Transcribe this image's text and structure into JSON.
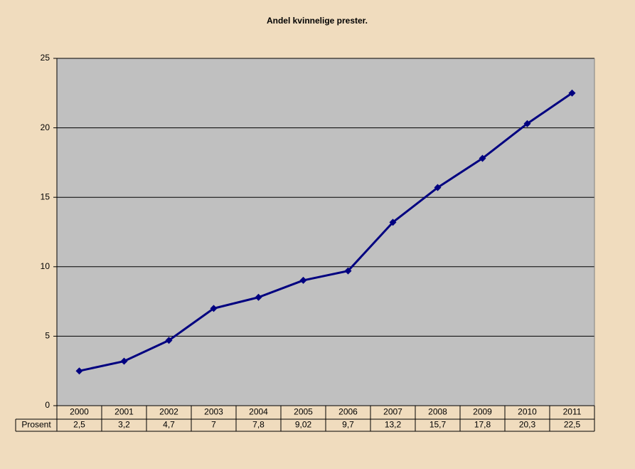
{
  "chart_data": {
    "type": "line",
    "title": "Andel kvinnelige prester.",
    "categories": [
      "2000",
      "2001",
      "2002",
      "2003",
      "2004",
      "2005",
      "2006",
      "2007",
      "2008",
      "2009",
      "2010",
      "2011"
    ],
    "series": [
      {
        "name": "Prosent",
        "color": "#000080",
        "values": [
          2.5,
          3.2,
          4.7,
          7,
          7.8,
          9.02,
          9.7,
          13.2,
          15.7,
          17.8,
          20.3,
          22.5
        ],
        "value_labels": [
          "2,5",
          "3,2",
          "4,7",
          "7",
          "7,8",
          "9,02",
          "9,7",
          "13,2",
          "15,7",
          "17,8",
          "20,3",
          "22,5"
        ]
      }
    ],
    "ylim": [
      0,
      25
    ],
    "yticks": [
      0,
      5,
      10,
      15,
      20,
      25
    ],
    "grid": true,
    "plot_background": "#c0c0c0"
  }
}
